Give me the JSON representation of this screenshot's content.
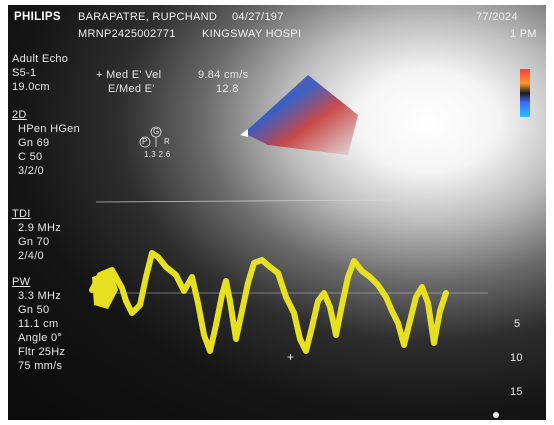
{
  "header": {
    "brand": "PHILIPS",
    "patient_name": "BARAPATRE, RUPCHAND",
    "dob": "04/27/197",
    "date_right": "77/2024",
    "mrn": "MRNP2425002771",
    "hospital": "KINGSWAY HOSPI",
    "time_right": "1 PM"
  },
  "preset": {
    "mode": "Adult Echo",
    "probe": "S5-1",
    "depth": "19.0cm"
  },
  "measurements": {
    "row1_label": "+ Med E' Vel",
    "row1_value": "9.84 cm/s",
    "row2_label": "E/Med E'",
    "row2_value": "12.8"
  },
  "section_2d": {
    "title": "2D",
    "lines": [
      "HPen HGen",
      "Gn 69",
      "C 50",
      "3/2/0"
    ],
    "marker_p": "P",
    "marker_g": "G",
    "marker_r": "R",
    "marker_values": "1.3 2.6"
  },
  "section_tdi": {
    "title": "TDI",
    "lines": [
      "2.9 MHz",
      "Gn 70",
      "2/4/0"
    ]
  },
  "section_pw": {
    "title": "PW",
    "lines": [
      "3.3 MHz",
      "Gn 50",
      "11.1 cm",
      "Angle 0°",
      "Fltr 25Hz",
      "75 mm/s"
    ]
  },
  "depth_scale": [
    "5",
    "10",
    "15"
  ],
  "colors": {
    "doppler_trace": "#e6e020",
    "screen_bg": "#0b0b0b"
  }
}
